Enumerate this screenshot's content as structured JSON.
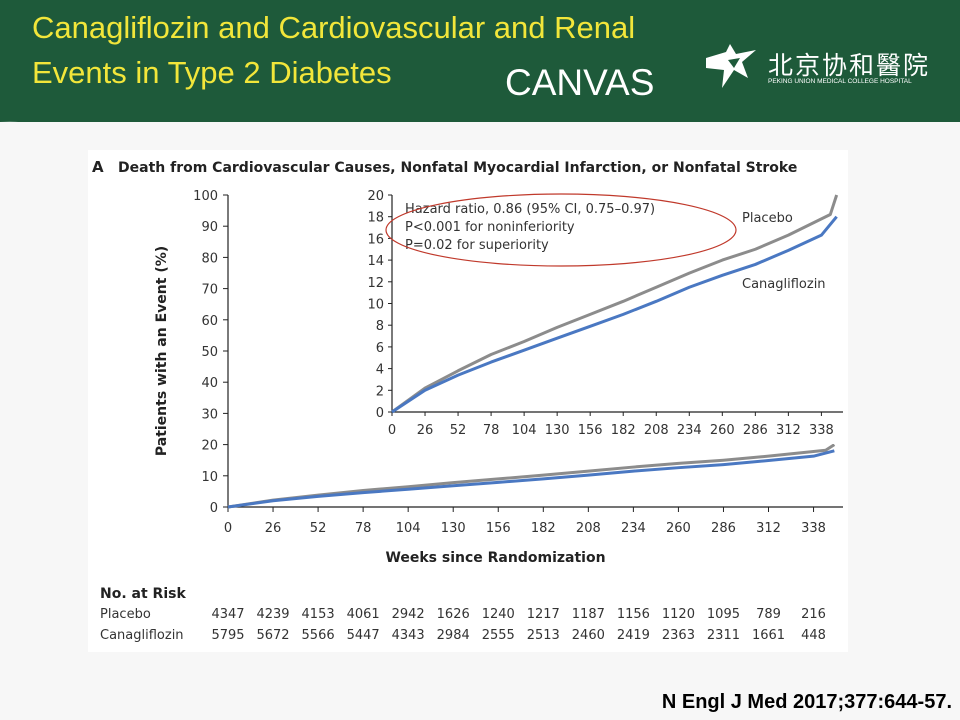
{
  "slide": {
    "title_line1": "Canagliflozin and Cardiovascular and Renal",
    "title_line2": "Events in Type 2 Diabetes",
    "trial_name": "CANVAS",
    "logo_text_cn": "北京协和醫院",
    "logo_text_en": "PEKING UNION MEDICAL COLLEGE HOSPITAL",
    "citation": "N Engl J Med 2017;377:644-57."
  },
  "colors": {
    "header_bg": "#1e5a3a",
    "title": "#f2e63a",
    "placebo": "#8c8c8c",
    "canagliflozin": "#4a78c2",
    "ellipse": "#c0392b"
  },
  "chart_data": {
    "type": "line",
    "panel_label": "A",
    "title": "Death from Cardiovascular Causes, Nonfatal Myocardial Infarction, or Nonfatal Stroke",
    "xlabel": "Weeks since Randomization",
    "ylabel": "Patients with an Event (%)",
    "x_ticks": [
      0,
      26,
      52,
      78,
      104,
      130,
      156,
      182,
      208,
      234,
      260,
      286,
      312,
      338
    ],
    "x_tick_labels": [
      "0",
      "26",
      "52",
      "78",
      "104",
      "130",
      "156",
      "182",
      "208",
      "234",
      "260",
      "286",
      "312",
      "338"
    ],
    "xlim": [
      0,
      355
    ],
    "ylim": [
      0,
      100
    ],
    "y_ticks": [
      0,
      10,
      20,
      30,
      40,
      50,
      60,
      70,
      80,
      90,
      100
    ],
    "y_tick_labels": [
      "0",
      "10",
      "20",
      "30",
      "40",
      "50",
      "60",
      "70",
      "80",
      "90",
      "100"
    ],
    "series": [
      {
        "name": "Placebo",
        "x": [
          0,
          26,
          52,
          78,
          104,
          130,
          156,
          182,
          208,
          234,
          260,
          286,
          312,
          338,
          345,
          350
        ],
        "y": [
          0,
          2.2,
          3.8,
          5.3,
          6.5,
          7.8,
          9.0,
          10.2,
          11.5,
          12.8,
          14.0,
          15.0,
          16.3,
          17.8,
          18.2,
          20.0
        ]
      },
      {
        "name": "Canagliflozin",
        "x": [
          0,
          26,
          52,
          78,
          104,
          130,
          156,
          182,
          208,
          234,
          260,
          286,
          312,
          338,
          350
        ],
        "y": [
          0,
          2.0,
          3.4,
          4.6,
          5.7,
          6.8,
          7.9,
          9.0,
          10.2,
          11.5,
          12.6,
          13.6,
          14.9,
          16.3,
          18.0
        ]
      }
    ],
    "inset": {
      "xlim": [
        0,
        355
      ],
      "ylim": [
        0,
        20
      ],
      "x_ticks": [
        0,
        26,
        52,
        78,
        104,
        130,
        156,
        182,
        208,
        234,
        260,
        286,
        312,
        338
      ],
      "x_tick_labels": [
        "0",
        "26",
        "52",
        "78",
        "104",
        "130",
        "156",
        "182",
        "208",
        "234",
        "260",
        "286",
        "312",
        "338"
      ],
      "y_ticks": [
        0,
        2,
        4,
        6,
        8,
        10,
        12,
        14,
        16,
        18,
        20
      ],
      "y_tick_labels": [
        "0",
        "2",
        "4",
        "6",
        "8",
        "10",
        "12",
        "14",
        "16",
        "18",
        "20"
      ],
      "series_labels": {
        "placebo": "Placebo",
        "canagliflozin": "Canagliflozin"
      }
    },
    "annotations": [
      "Hazard ratio, 0.86 (95% CI, 0.75–0.97)",
      "P<0.001 for noninferiority",
      "P=0.02 for superiority"
    ],
    "risk_table": {
      "title": "No. at Risk",
      "rows": [
        {
          "label": "Placebo",
          "values": [
            "4347",
            "4239",
            "4153",
            "4061",
            "2942",
            "1626",
            "1240",
            "1217",
            "1187",
            "1156",
            "1120",
            "1095",
            "789",
            "216"
          ]
        },
        {
          "label": "Canagliflozin",
          "values": [
            "5795",
            "5672",
            "5566",
            "5447",
            "4343",
            "2984",
            "2555",
            "2513",
            "2460",
            "2419",
            "2363",
            "2311",
            "1661",
            "448"
          ]
        }
      ]
    }
  }
}
